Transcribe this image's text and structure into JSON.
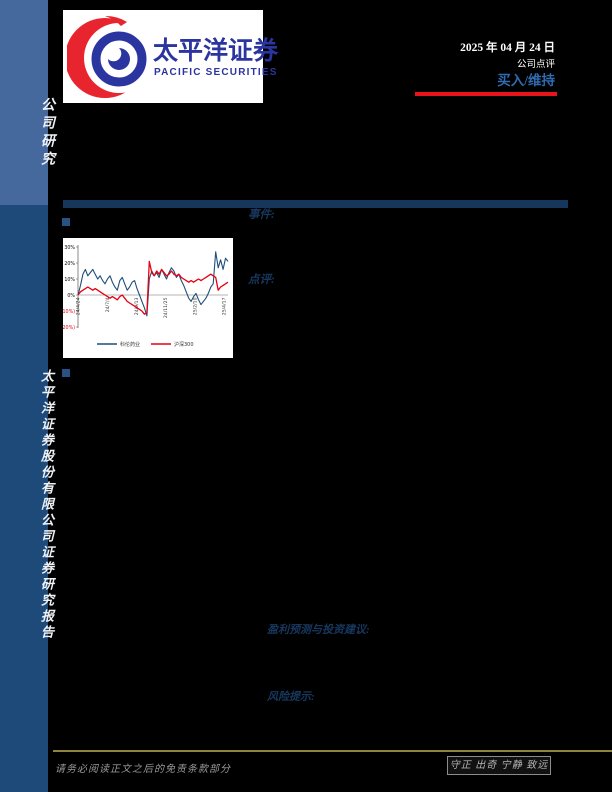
{
  "page": {
    "background": "#000000"
  },
  "sidebar": {
    "top_label": "公司研究",
    "bottom_label": "太平洋证券股份有限公司证券研究报告",
    "top_bg": "#46699d",
    "bottom_bg": "#1e4a7a"
  },
  "header": {
    "logo_cn": "太平洋证券",
    "logo_en": "PACIFIC SECURITIES",
    "logo_blue": "#2b35a0",
    "logo_red": "#e8242e",
    "date": "2025 年 04 月 24 日",
    "report_type": "公司点评",
    "rating": "买入/维持",
    "rating_color": "#2f6bb0",
    "underline_color": "#e8141c"
  },
  "sections": {
    "event_label": "事件:",
    "comment_label": "点评:",
    "forecast_label": "盈利预测与投资建议:",
    "risk_label": "风险提示:"
  },
  "chart_data": {
    "type": "line",
    "title": "",
    "ylim": [
      -20,
      30
    ],
    "grid": false,
    "legend_position": "bottom",
    "y_ticks": [
      {
        "value": 30,
        "label": "30%",
        "color": "#000000"
      },
      {
        "value": 20,
        "label": "20%",
        "color": "#000000"
      },
      {
        "value": 10,
        "label": "10%",
        "color": "#000000"
      },
      {
        "value": 0,
        "label": "0%",
        "color": "#000000"
      },
      {
        "value": -10,
        "label": "(10%)",
        "color": "#e60012"
      },
      {
        "value": -20,
        "label": "(20%)",
        "color": "#e60012"
      }
    ],
    "x_tick_labels": [
      "24/4/24",
      "24/7/4",
      "24/9/13",
      "24/11/25",
      "25/2/10",
      "25/4/17"
    ],
    "series": [
      {
        "name": "科伦药业",
        "color": "#1f4e79",
        "values": [
          0,
          6,
          13,
          16,
          12,
          14,
          16,
          13,
          10,
          12,
          9,
          7,
          10,
          12,
          8,
          5,
          3,
          9,
          11,
          7,
          3,
          5,
          8,
          9,
          4,
          0,
          -4,
          -8,
          -13,
          10,
          15,
          12,
          14,
          11,
          16,
          13,
          10,
          14,
          17,
          15,
          11,
          13,
          9,
          6,
          2,
          -2,
          -4,
          -1,
          1,
          -3,
          -6,
          -4,
          -2,
          1,
          5,
          7,
          27,
          17,
          22,
          16,
          23,
          21
        ]
      },
      {
        "name": "沪深300",
        "color": "#e60012",
        "values": [
          0,
          2,
          3,
          4,
          5,
          4,
          3,
          4,
          3,
          2,
          1,
          0,
          -1,
          -2,
          -1,
          -2,
          -3,
          -1,
          0,
          -2,
          -4,
          -5,
          -6,
          -7,
          -8,
          -9,
          -10,
          -12,
          -11,
          21,
          14,
          12,
          15,
          13,
          16,
          14,
          12,
          13,
          15,
          13,
          12,
          13,
          11,
          10,
          9,
          8,
          9,
          8,
          9,
          10,
          9,
          10,
          11,
          12,
          13,
          12,
          11,
          3,
          5,
          6,
          7,
          8
        ]
      }
    ]
  },
  "footer": {
    "disclaimer": "请务必阅读正文之后的免责条款部分",
    "motto": "守正 出奇 宁静 致远",
    "line_color": "#8f843b"
  }
}
